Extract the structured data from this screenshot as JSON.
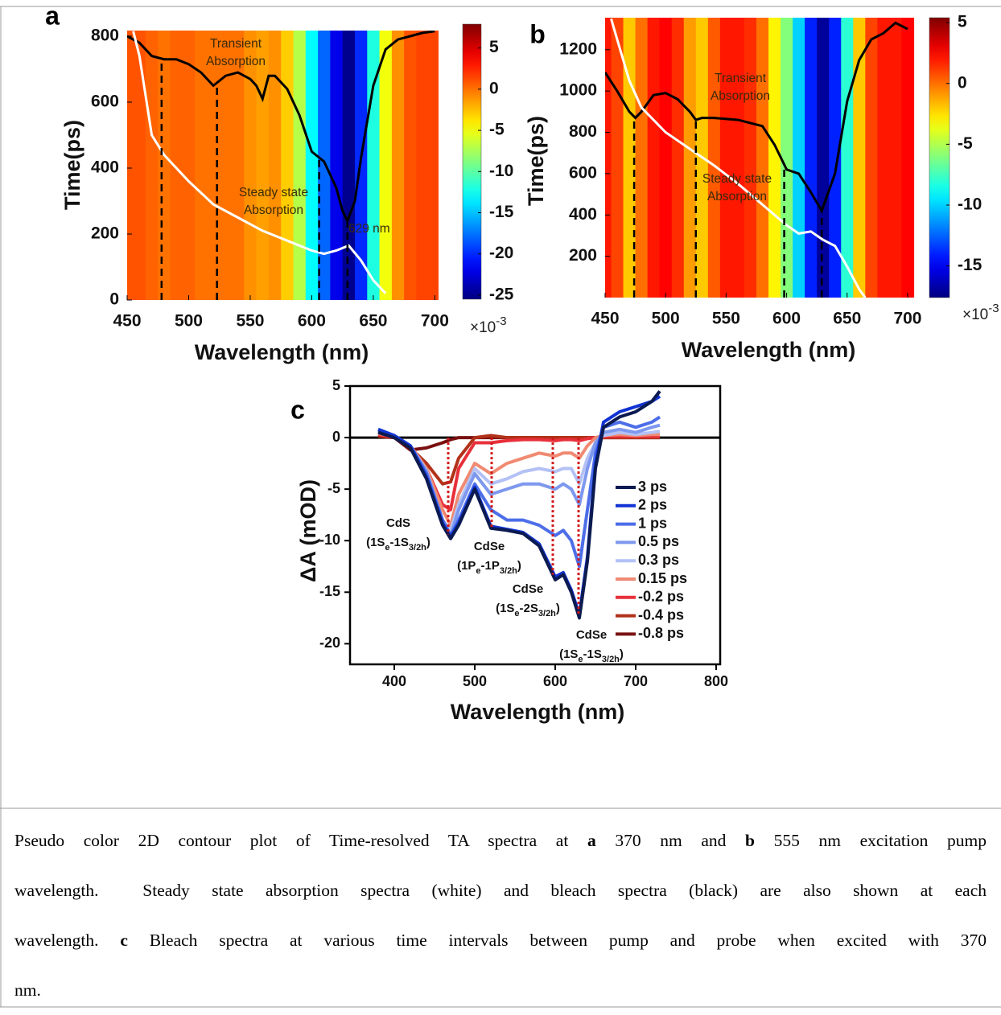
{
  "chart_data": [
    {
      "type": "heatmap",
      "panel": "a",
      "xlabel": "Wavelength (nm)",
      "ylabel": "Time(ps)",
      "xlim": [
        450,
        703
      ],
      "ylim": [
        0,
        817
      ],
      "xticks": [
        450,
        500,
        550,
        600,
        650,
        700
      ],
      "yticks": [
        0,
        200,
        400,
        600,
        800
      ],
      "x": [
        450,
        460,
        470,
        480,
        490,
        500,
        510,
        520,
        530,
        540,
        550,
        560,
        570,
        580,
        590,
        600,
        610,
        620,
        630,
        640,
        650,
        660,
        670,
        680,
        690,
        700
      ],
      "values": [
        1,
        1,
        0.5,
        0,
        0.5,
        0.5,
        0,
        0,
        0,
        0,
        -1,
        -1.5,
        -1,
        -3,
        -7,
        -13,
        -18,
        -22,
        -25,
        -20,
        -12,
        -5,
        -1,
        1,
        1.5,
        1.5
      ],
      "colorbar": {
        "clim": [
          -25.5,
          7.9
        ],
        "ticks": [
          5,
          0,
          -5,
          -10,
          -15,
          -20,
          -25
        ],
        "multiplier": "×10",
        "exponent": "-3"
      },
      "curves": [
        {
          "color": "#000000",
          "x": [
            450,
            460,
            470,
            480,
            490,
            500,
            510,
            520,
            530,
            540,
            550,
            555,
            560,
            565,
            570,
            580,
            590,
            600,
            610,
            620,
            625,
            629,
            635,
            640,
            650,
            660,
            670,
            680,
            690,
            700
          ],
          "y": [
            800,
            780,
            740,
            730,
            730,
            715,
            690,
            650,
            680,
            690,
            670,
            650,
            610,
            680,
            680,
            640,
            560,
            450,
            420,
            340,
            270,
            240,
            300,
            430,
            650,
            760,
            790,
            800,
            810,
            815
          ]
        },
        {
          "color": "#ffffff",
          "x": [
            455,
            460,
            470,
            480,
            500,
            520,
            540,
            560,
            580,
            600,
            610,
            620,
            630,
            640,
            650,
            660
          ],
          "y": [
            815,
            740,
            500,
            440,
            360,
            290,
            250,
            210,
            180,
            150,
            140,
            150,
            165,
            120,
            60,
            20
          ]
        }
      ],
      "markers": [
        478,
        523,
        606,
        629
      ],
      "annotations": [
        {
          "lines": [
            "Transient",
            "Absorption"
          ]
        },
        {
          "lines": [
            "Steady state",
            "Absorption"
          ]
        },
        {
          "lines": [
            "629 nm"
          ]
        }
      ]
    },
    {
      "type": "heatmap",
      "panel": "b",
      "xlabel": "Wavelength (nm)",
      "ylabel": "Time(ps)",
      "xlim": [
        450,
        710
      ],
      "ylim": [
        0,
        1355
      ],
      "xticks": [
        450,
        500,
        550,
        600,
        650,
        700
      ],
      "yticks": [
        200,
        400,
        600,
        800,
        1000,
        1200
      ],
      "x": [
        450,
        460,
        470,
        480,
        490,
        500,
        510,
        520,
        530,
        540,
        550,
        560,
        570,
        580,
        590,
        600,
        610,
        620,
        630,
        640,
        650,
        660,
        670,
        680,
        690,
        700
      ],
      "values": [
        2,
        1,
        -2,
        0,
        2,
        2.5,
        1.5,
        -1,
        -2,
        0.5,
        2,
        2,
        1.5,
        0,
        -3,
        -6,
        -10,
        -14,
        -17,
        -14,
        -8,
        -2,
        1,
        2,
        2,
        2.5
      ],
      "colorbar": {
        "clim": [
          -17.6,
          5.4
        ],
        "ticks": [
          5,
          0,
          -5,
          -10,
          -15
        ],
        "multiplier": "×10",
        "exponent": "-3"
      },
      "curves": [
        {
          "color": "#000000",
          "x": [
            450,
            460,
            470,
            475,
            480,
            490,
            500,
            510,
            520,
            525,
            530,
            540,
            560,
            580,
            590,
            600,
            610,
            620,
            629,
            640,
            650,
            660,
            670,
            680,
            690,
            700
          ],
          "y": [
            1090,
            1000,
            900,
            870,
            900,
            980,
            990,
            960,
            900,
            860,
            870,
            870,
            860,
            830,
            740,
            620,
            600,
            510,
            420,
            600,
            950,
            1150,
            1250,
            1280,
            1330,
            1300
          ]
        },
        {
          "color": "#ffffff",
          "x": [
            455,
            460,
            470,
            480,
            500,
            520,
            540,
            560,
            580,
            600,
            610,
            620,
            630,
            640,
            650,
            660,
            665
          ],
          "y": [
            1350,
            1250,
            1050,
            920,
            800,
            720,
            640,
            550,
            450,
            350,
            310,
            320,
            280,
            250,
            150,
            40,
            0
          ]
        }
      ],
      "markers": [
        474,
        525,
        598,
        629
      ],
      "annotations": [
        {
          "lines": [
            "Transient",
            "Absorption"
          ]
        },
        {
          "lines": [
            "Steady state",
            "Absorption"
          ]
        }
      ]
    },
    {
      "type": "line",
      "panel": "c",
      "xlabel": "Wavelength (nm)",
      "ylabel": "ΔA (mOD)",
      "xlim": [
        345,
        805
      ],
      "ylim": [
        -22,
        5
      ],
      "xticks": [
        400,
        500,
        600,
        700,
        800
      ],
      "yticks": [
        5,
        0,
        -5,
        -10,
        -15,
        -20
      ],
      "x": [
        380,
        400,
        420,
        440,
        460,
        470,
        480,
        500,
        520,
        540,
        560,
        580,
        600,
        610,
        620,
        630,
        640,
        650,
        660,
        680,
        700,
        720,
        730
      ],
      "series": [
        {
          "name": "3 ps",
          "color": "#0b1a50",
          "values": [
            0.5,
            0,
            -1,
            -4,
            -8.5,
            -9.8,
            -8.5,
            -5,
            -8.8,
            -9,
            -9.3,
            -10.5,
            -13.8,
            -13.3,
            -15,
            -17.5,
            -12,
            -3,
            1,
            2,
            2.5,
            3.5,
            4.5
          ]
        },
        {
          "name": "2 ps",
          "color": "#1234d4",
          "values": [
            0.8,
            0.2,
            -0.8,
            -3.8,
            -8.3,
            -9.6,
            -8.3,
            -4.8,
            -8.6,
            -8.9,
            -9.2,
            -10.3,
            -13.5,
            -13.1,
            -14.8,
            -17.2,
            -11.6,
            -2.5,
            1.5,
            2.5,
            3,
            3.5,
            4
          ]
        },
        {
          "name": "1 ps",
          "color": "#4d6ee8",
          "values": [
            0.7,
            0.2,
            -0.8,
            -3.5,
            -8,
            -9.5,
            -8,
            -4.5,
            -7,
            -8,
            -8,
            -8.5,
            -9.5,
            -9,
            -10,
            -12.5,
            -7,
            -1.5,
            1,
            1.5,
            1,
            1.5,
            2
          ]
        },
        {
          "name": "0.5 ps",
          "color": "#7e98ee",
          "values": [
            0.6,
            0.2,
            -0.8,
            -3.3,
            -8,
            -9.5,
            -7,
            -3.5,
            -5.5,
            -5,
            -4.5,
            -4.5,
            -5,
            -4.5,
            -5,
            -6.5,
            -3,
            -0.5,
            0.5,
            0.8,
            0.5,
            1,
            1.2
          ]
        },
        {
          "name": "0.3 ps",
          "color": "#b3c1f5",
          "values": [
            0.5,
            0.1,
            -0.8,
            -3.2,
            -8,
            -9,
            -6.5,
            -3,
            -4.5,
            -4,
            -3.3,
            -3,
            -3.3,
            -3,
            -3,
            -4.5,
            -2,
            -0.5,
            0.2,
            0.5,
            0.3,
            0.5,
            0.6
          ]
        },
        {
          "name": "0.15 ps",
          "color": "#f08a72",
          "values": [
            0.4,
            0.1,
            -0.8,
            -3,
            -7,
            -8.5,
            -5.5,
            -2.5,
            -3.5,
            -2.5,
            -2,
            -1.5,
            -1.8,
            -1.5,
            -1.5,
            -2,
            -0.8,
            0,
            0.2,
            0.3,
            0.2,
            0.3,
            0.3
          ]
        },
        {
          "name": "-0.2 ps",
          "color": "#e8303a",
          "values": [
            0.3,
            0,
            -0.8,
            -3,
            -6.5,
            -7,
            -3,
            -0.5,
            -0.5,
            -0.3,
            -0.2,
            -0.2,
            -0.3,
            -0.2,
            -0.2,
            -0.3,
            -0.1,
            0,
            0.1,
            0.1,
            0.1,
            0.1,
            0.1
          ]
        },
        {
          "name": "-0.4 ps",
          "color": "#b2321a",
          "values": [
            0.2,
            0,
            -1,
            -2.5,
            -4.5,
            -4.3,
            -2,
            0,
            0.2,
            0,
            0,
            0,
            0,
            0,
            0,
            0,
            0,
            0,
            0,
            0,
            0,
            0,
            0
          ]
        },
        {
          "name": "-0.8 ps",
          "color": "#7a1010",
          "values": [
            0.1,
            0,
            -1.2,
            -1,
            -0.5,
            -0.2,
            0,
            0,
            0,
            0,
            0,
            0,
            0,
            0,
            0,
            0,
            0,
            0,
            0,
            0,
            0,
            0,
            0
          ]
        }
      ],
      "markers": [
        467,
        521,
        597,
        629
      ],
      "annotations": [
        {
          "lines": [
            [
              {
                "text": "CdS"
              }
            ],
            [
              {
                "text": "(1S"
              },
              {
                "text": "e",
                "sub": true
              },
              {
                "text": "-1S"
              },
              {
                "text": "3/2h",
                "sub": true
              },
              {
                "text": ")"
              }
            ]
          ]
        },
        {
          "lines": [
            [
              {
                "text": "CdSe"
              }
            ],
            [
              {
                "text": "(1P"
              },
              {
                "text": "e",
                "sub": true
              },
              {
                "text": "-1P"
              },
              {
                "text": "3/2h",
                "sub": true
              },
              {
                "text": ")"
              }
            ]
          ]
        },
        {
          "lines": [
            [
              {
                "text": "CdSe"
              }
            ],
            [
              {
                "text": "(1S"
              },
              {
                "text": "e",
                "sub": true
              },
              {
                "text": "-2S"
              },
              {
                "text": "3/2h",
                "sub": true
              },
              {
                "text": ")"
              }
            ]
          ]
        },
        {
          "lines": [
            [
              {
                "text": "CdSe"
              }
            ],
            [
              {
                "text": "(1S"
              },
              {
                "text": "e",
                "sub": true
              },
              {
                "text": "-1S"
              },
              {
                "text": "3/2h",
                "sub": true
              },
              {
                "text": ")"
              }
            ]
          ]
        }
      ]
    }
  ],
  "caption": {
    "lines": [
      [
        {
          "text": "Pseudo color 2D contour plot of Time-resolved TA spectra at "
        },
        {
          "text": "a",
          "bold": true
        },
        {
          "text": " 370 nm and "
        },
        {
          "text": "b",
          "bold": true
        },
        {
          "text": " 555 nm excitation pump"
        }
      ],
      [
        {
          "text": "wavelength.  Steady state absorption spectra (white) and bleach spectra (black) are also shown at each"
        }
      ],
      [
        {
          "text": "wavelength. "
        },
        {
          "text": "c",
          "bold": true
        },
        {
          "text": " Bleach spectra at various time intervals between pump and probe when excited with 370"
        }
      ],
      [
        {
          "text": "nm."
        }
      ]
    ]
  }
}
